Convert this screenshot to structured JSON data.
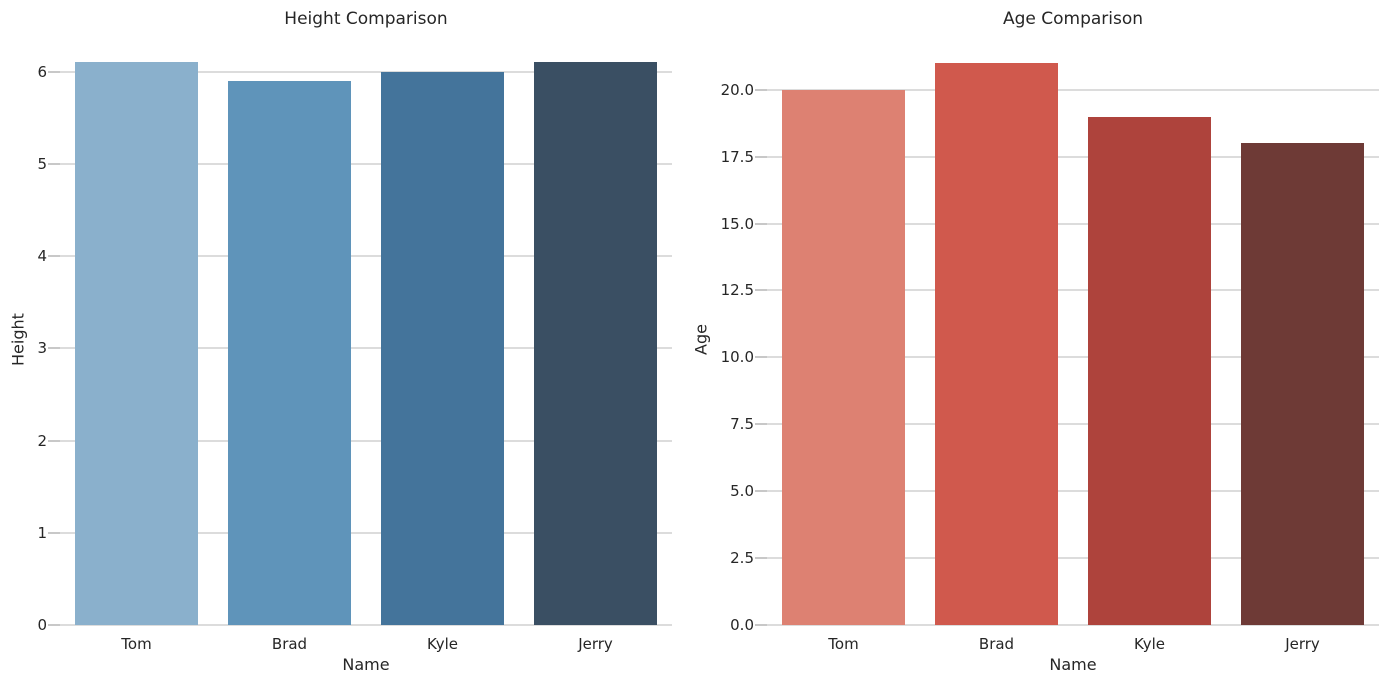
{
  "figure": {
    "background": "#ffffff",
    "text_color": "#262626",
    "grid_color": "#dcdcdc",
    "tick_color": "#c8c8c8"
  },
  "chart_data": [
    {
      "type": "bar",
      "title": "Height Comparison",
      "xlabel": "Name",
      "ylabel": "Height",
      "categories": [
        "Tom",
        "Brad",
        "Kyle",
        "Jerry"
      ],
      "values": [
        6.1,
        5.9,
        6.0,
        6.1
      ],
      "ylim": [
        0,
        6.18
      ],
      "yticks": [
        0,
        1,
        2,
        3,
        4,
        5,
        6
      ],
      "ytick_labels": [
        "0",
        "1",
        "2",
        "3",
        "4",
        "5",
        "6"
      ],
      "bar_colors": [
        "#8ab0cc",
        "#5f94ba",
        "#44749b",
        "#3a4f63"
      ],
      "grid": true,
      "legend": false
    },
    {
      "type": "bar",
      "title": "Age Comparison",
      "xlabel": "Name",
      "ylabel": "Age",
      "categories": [
        "Tom",
        "Brad",
        "Kyle",
        "Jerry"
      ],
      "values": [
        20,
        21,
        19,
        18
      ],
      "ylim": [
        0,
        21.3
      ],
      "yticks": [
        0,
        2.5,
        5,
        7.5,
        10,
        12.5,
        15,
        17.5,
        20
      ],
      "ytick_labels": [
        "0.0",
        "2.5",
        "5.0",
        "7.5",
        "10.0",
        "12.5",
        "15.0",
        "17.5",
        "20.0"
      ],
      "bar_colors": [
        "#dd8172",
        "#d0594d",
        "#ae433c",
        "#6e3a36"
      ],
      "grid": true,
      "legend": false
    }
  ]
}
